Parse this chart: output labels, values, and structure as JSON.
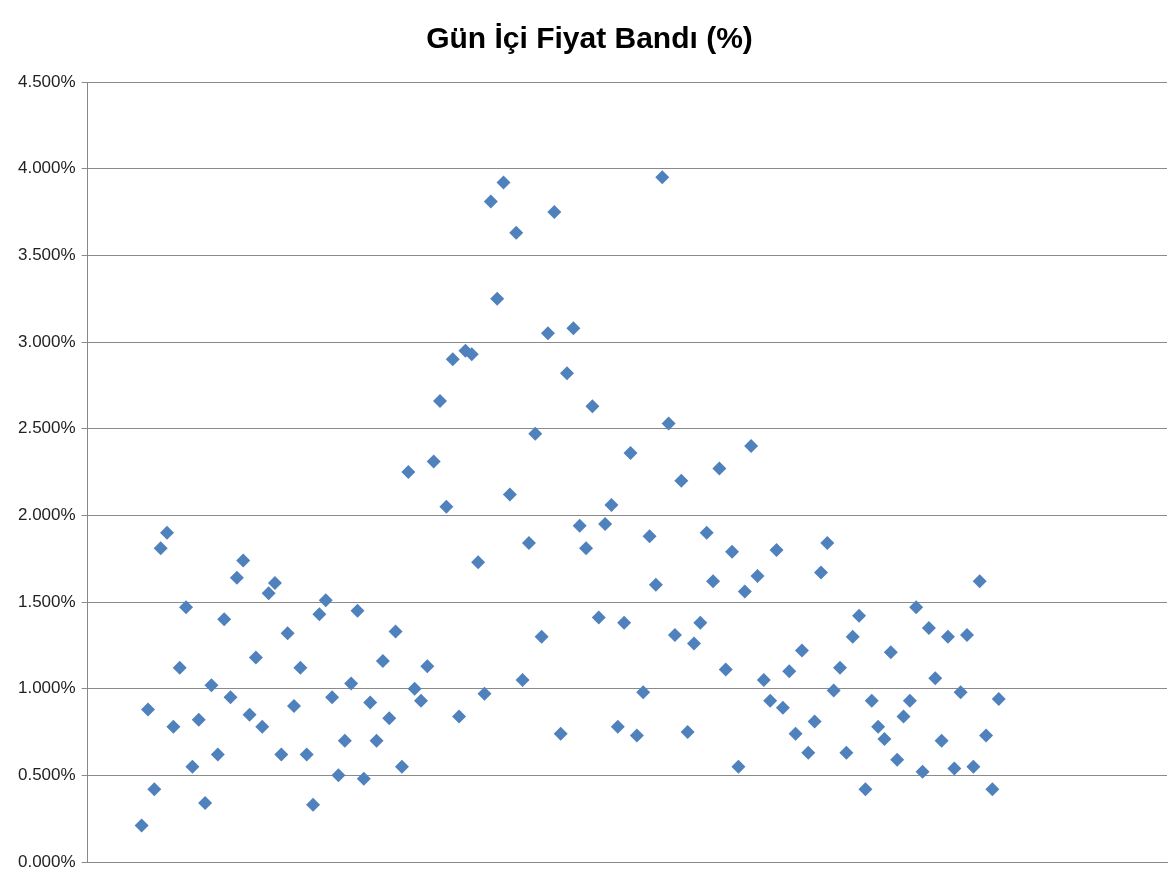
{
  "chart_data": {
    "type": "scatter",
    "title": "Gün İçi Fiyat Bandı (%)",
    "categories": [
      null,
      null,
      null,
      null,
      null,
      null,
      null,
      null,
      null,
      null,
      null,
      null,
      null,
      null,
      null,
      null,
      null,
      null,
      null,
      null,
      null,
      null,
      null,
      null,
      null,
      null,
      null,
      null,
      null,
      null,
      null,
      null,
      null,
      null,
      null,
      null,
      null,
      null,
      null,
      null,
      null,
      null,
      null,
      null,
      null,
      null,
      null,
      null,
      null,
      null,
      null,
      null,
      null,
      null,
      null,
      null,
      null,
      null,
      null,
      null,
      null,
      null,
      null,
      null,
      null,
      null,
      null,
      null,
      null,
      null,
      null,
      null,
      null,
      null,
      null,
      null,
      null,
      null,
      null,
      null,
      null,
      null,
      null,
      null,
      null,
      null,
      null,
      null,
      null,
      null,
      null,
      null,
      null,
      null,
      null,
      null,
      null,
      null,
      null,
      null,
      null,
      null,
      null,
      null,
      null,
      null,
      null,
      null,
      null,
      null,
      null,
      null,
      null,
      null,
      null,
      null,
      null,
      null,
      null,
      null,
      null,
      null,
      null,
      null,
      null,
      null,
      null,
      null,
      null,
      null,
      null,
      null,
      null,
      null,
      null,
      null,
      null,
      null,
      null,
      null,
      null,
      null,
      null,
      null,
      null,
      null,
      null,
      null,
      null,
      null,
      null,
      null,
      null,
      null,
      null,
      null,
      null,
      null,
      null,
      null,
      null,
      null,
      null,
      null,
      null,
      null,
      null,
      null,
      null,
      null
    ],
    "series": [
      {
        "color": "#4f81bd",
        "values": [
          null,
          null,
          null,
          null,
          null,
          null,
          null,
          null,
          0.21,
          0.88,
          0.42,
          1.81,
          1.9,
          0.78,
          1.12,
          1.47,
          0.55,
          0.82,
          0.34,
          1.02,
          0.62,
          1.4,
          0.95,
          1.64,
          1.74,
          0.85,
          1.18,
          0.78,
          1.55,
          1.61,
          0.62,
          1.32,
          0.9,
          1.12,
          0.62,
          0.33,
          1.43,
          1.51,
          0.95,
          0.5,
          0.7,
          1.03,
          1.45,
          0.48,
          0.92,
          0.7,
          1.16,
          0.83,
          1.33,
          0.55,
          2.25,
          1.0,
          0.93,
          1.13,
          2.31,
          2.66,
          2.05,
          2.9,
          0.84,
          2.95,
          2.93,
          1.73,
          0.97,
          3.81,
          3.25,
          3.92,
          2.12,
          3.63,
          1.05,
          1.84,
          2.47,
          1.3,
          3.05,
          3.75,
          0.74,
          2.82,
          3.08,
          1.94,
          1.81,
          2.63,
          1.41,
          1.95,
          2.06,
          0.78,
          1.38,
          2.36,
          0.73,
          0.98,
          1.88,
          1.6,
          3.95,
          2.53,
          1.31,
          2.2,
          0.75,
          1.26,
          1.38,
          1.9,
          1.62,
          2.27,
          1.11,
          1.79,
          0.55,
          1.56,
          2.4,
          1.65,
          1.05,
          0.93,
          1.8,
          0.89,
          1.1,
          0.74,
          1.22,
          0.63,
          0.81,
          1.67,
          1.84,
          0.99,
          1.12,
          0.63,
          1.3,
          1.42,
          0.42,
          0.93,
          0.78,
          0.71,
          1.21,
          0.59,
          0.84,
          0.93,
          1.47,
          0.52,
          1.35,
          1.06,
          0.7,
          1.3,
          0.54,
          0.98,
          1.31,
          0.55,
          1.62,
          0.73,
          0.42,
          0.94,
          null,
          null,
          null,
          null,
          null,
          null,
          null,
          null,
          null,
          null,
          null,
          null,
          null,
          null,
          null,
          null,
          null,
          null,
          null,
          null,
          null,
          null,
          null,
          null,
          null,
          null
        ]
      }
    ],
    "ylim": [
      0,
      4.5
    ],
    "yticks": [
      {
        "value": 0,
        "label": "0.000%"
      },
      {
        "value": 0.5,
        "label": "0.500%"
      },
      {
        "value": 1,
        "label": "1.000%"
      },
      {
        "value": 1.5,
        "label": "1.500%"
      },
      {
        "value": 2,
        "label": "2.000%"
      },
      {
        "value": 2.5,
        "label": "2.500%"
      },
      {
        "value": 3,
        "label": "3.000%"
      },
      {
        "value": 3.5,
        "label": "3.500%"
      },
      {
        "value": 4,
        "label": "4.000%"
      },
      {
        "value": 4.5,
        "label": "4.500%"
      }
    ],
    "grid": "y",
    "legend": false,
    "marker": "diamond",
    "tick_labels": "y"
  }
}
